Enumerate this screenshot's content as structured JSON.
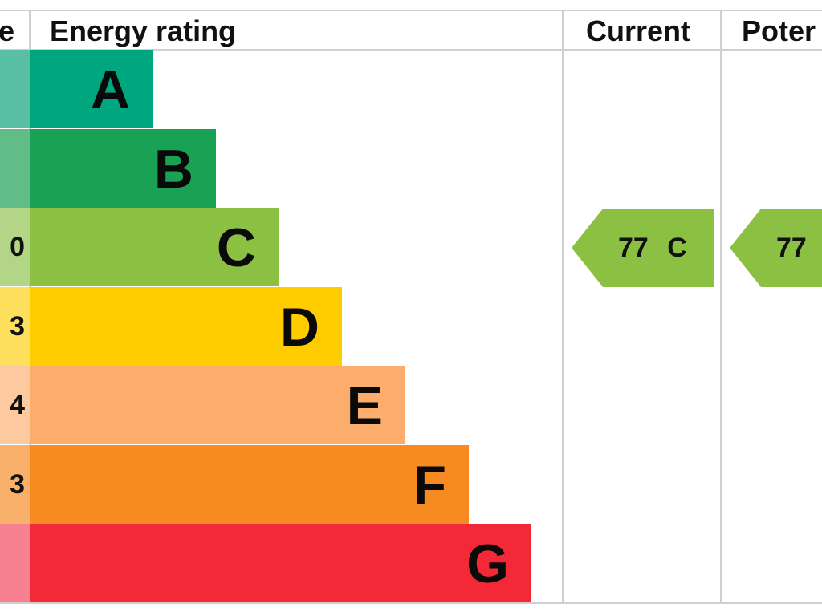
{
  "chart_data": {
    "type": "bar",
    "title": "",
    "headers": {
      "score": "e",
      "rating": "Energy rating",
      "current": "Current",
      "potential": "Poter"
    },
    "bands": [
      {
        "letter": "A",
        "score": "",
        "color": "#00a77e",
        "score_color": "#5ac0a4"
      },
      {
        "letter": "B",
        "score": "",
        "color": "#19a254",
        "score_color": "#61bd88"
      },
      {
        "letter": "C",
        "score": "0",
        "color": "#8cc043",
        "score_color": "#b3d586"
      },
      {
        "letter": "D",
        "score": "3",
        "color": "#ffcc00",
        "score_color": "#ffdf5e"
      },
      {
        "letter": "E",
        "score": "4",
        "color": "#fcad6b",
        "score_color": "#fcc9a0"
      },
      {
        "letter": "F",
        "score": "3",
        "color": "#f78a20",
        "score_color": "#f9b06b"
      },
      {
        "letter": "G",
        "score": "",
        "color": "#f42938",
        "score_color": "#f78091"
      }
    ],
    "current": {
      "value": 77,
      "band": "C",
      "label": "77  C",
      "color": "#8cc043"
    },
    "potential": {
      "value": 77,
      "band": "C",
      "label": "77",
      "color": "#8cc043"
    }
  }
}
